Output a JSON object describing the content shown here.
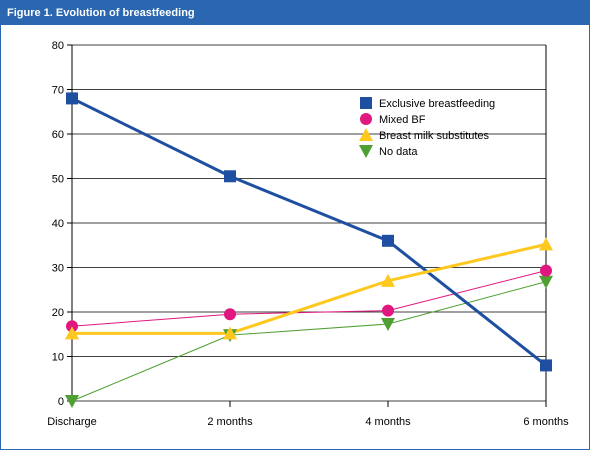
{
  "figure": {
    "title": "Figure 1.  Evolution of breastfeeding",
    "title_bg": "#2b66b0"
  },
  "chart_data": {
    "type": "line",
    "title": "Figure 1.  Evolution of breastfeeding",
    "xlabel": "",
    "ylabel": "",
    "categories": [
      "Discharge",
      "2 months",
      "4 months",
      "6 months"
    ],
    "ylim": [
      0,
      80
    ],
    "yticks": [
      0,
      10,
      20,
      30,
      40,
      50,
      60,
      70,
      80
    ],
    "grid": "horizontal",
    "legend_position": "top-right",
    "series": [
      {
        "name": "Exclusive breastfeeding",
        "values": [
          68,
          50.5,
          36,
          8
        ],
        "color": "#1f4fa0",
        "marker": "square",
        "line_width": 3
      },
      {
        "name": "Mixed BF",
        "values": [
          16.8,
          19.5,
          20.3,
          29.3
        ],
        "color": "#e0177f",
        "marker": "circle",
        "line_width": 1
      },
      {
        "name": "Breast milk substitutes",
        "values": [
          15.2,
          15.2,
          27,
          35.2
        ],
        "color": "#ffc81e",
        "marker": "triangle-up",
        "line_width": 3
      },
      {
        "name": "No data",
        "values": [
          0,
          14.8,
          17.3,
          26.8
        ],
        "color": "#4ea032",
        "marker": "triangle-down",
        "line_width": 1
      }
    ]
  }
}
